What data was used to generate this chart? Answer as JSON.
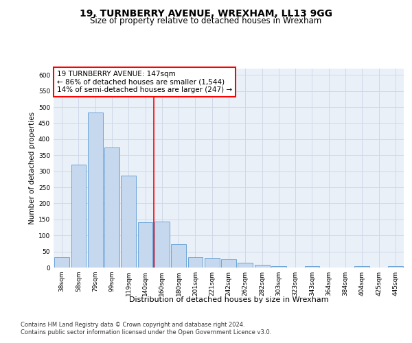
{
  "title": "19, TURNBERRY AVENUE, WREXHAM, LL13 9GG",
  "subtitle": "Size of property relative to detached houses in Wrexham",
  "xlabel": "Distribution of detached houses by size in Wrexham",
  "ylabel": "Number of detached properties",
  "categories": [
    "38sqm",
    "58sqm",
    "79sqm",
    "99sqm",
    "119sqm",
    "140sqm",
    "160sqm",
    "180sqm",
    "201sqm",
    "221sqm",
    "242sqm",
    "262sqm",
    "282sqm",
    "303sqm",
    "323sqm",
    "343sqm",
    "364sqm",
    "384sqm",
    "404sqm",
    "425sqm",
    "445sqm"
  ],
  "values": [
    32,
    320,
    483,
    375,
    287,
    142,
    143,
    73,
    32,
    30,
    25,
    15,
    8,
    5,
    0,
    5,
    0,
    0,
    5,
    0,
    5
  ],
  "bar_color": "#c5d8ed",
  "bar_edge_color": "#5b9bd5",
  "grid_color": "#d0d8e8",
  "background_color": "#eaf0f8",
  "annotation_text": "19 TURNBERRY AVENUE: 147sqm\n← 86% of detached houses are smaller (1,544)\n14% of semi-detached houses are larger (247) →",
  "vline_x_index": 5.5,
  "annotation_box_color": "white",
  "annotation_border_color": "red",
  "vline_color": "red",
  "ylim": [
    0,
    620
  ],
  "yticks": [
    0,
    50,
    100,
    150,
    200,
    250,
    300,
    350,
    400,
    450,
    500,
    550,
    600
  ],
  "footer_line1": "Contains HM Land Registry data © Crown copyright and database right 2024.",
  "footer_line2": "Contains public sector information licensed under the Open Government Licence v3.0.",
  "title_fontsize": 10,
  "subtitle_fontsize": 8.5,
  "xlabel_fontsize": 8,
  "ylabel_fontsize": 7.5,
  "tick_fontsize": 6.5,
  "annotation_fontsize": 7.5,
  "footer_fontsize": 6
}
